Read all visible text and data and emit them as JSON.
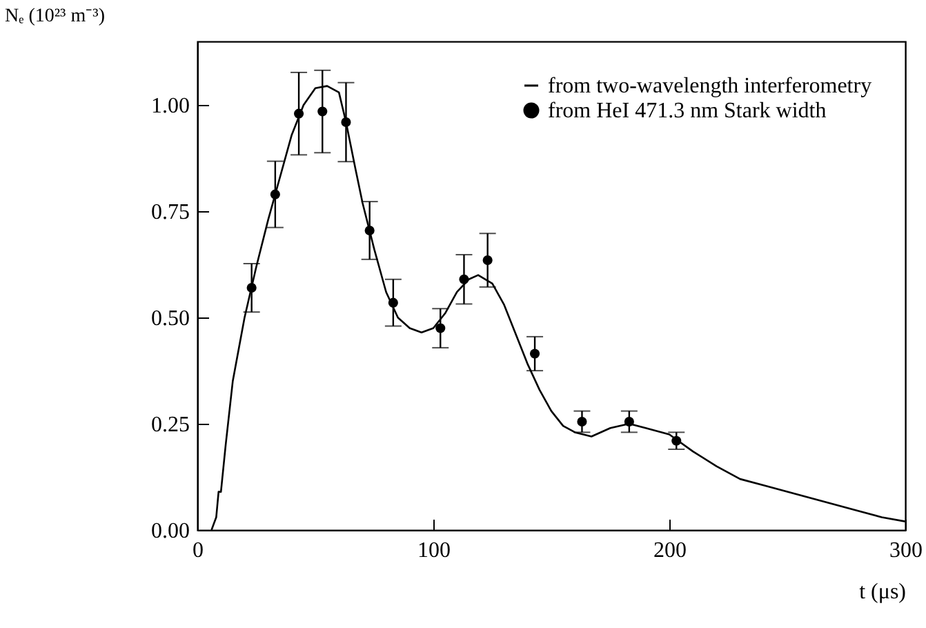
{
  "chart_data": {
    "type": "line",
    "xlabel": "t (μs)",
    "ylabel": "Nₑ (10²³ m⁻³)",
    "xlim": [
      0,
      300
    ],
    "ylim": [
      0,
      1.15
    ],
    "xticks": [
      0,
      100,
      200,
      300
    ],
    "yticks": [
      {
        "value": 0,
        "label": "0.00"
      },
      {
        "value": 0.25,
        "label": "0.25"
      },
      {
        "value": 0.5,
        "label": "0.50"
      },
      {
        "value": 0.75,
        "label": "0.75"
      },
      {
        "value": 1,
        "label": "1.00"
      }
    ],
    "legend": "top right",
    "series": [
      {
        "name": "from two-wavelength interferometry",
        "type": "line",
        "color": "#000000",
        "line_style": "solid",
        "x": [
          6,
          8,
          9,
          10,
          12,
          15,
          17,
          20,
          25,
          30,
          35,
          40,
          45,
          50,
          55,
          60,
          63,
          67,
          70,
          75,
          80,
          85,
          90,
          95,
          100,
          105,
          110,
          115,
          119,
          125,
          130,
          135,
          140,
          145,
          150,
          155,
          160,
          167,
          175,
          183,
          190,
          200,
          210,
          220,
          230,
          240,
          250,
          260,
          270,
          280,
          290,
          300
        ],
        "values": [
          0,
          0.03,
          0.09,
          0.09,
          0.2,
          0.35,
          0.41,
          0.5,
          0.62,
          0.73,
          0.83,
          0.93,
          1.0,
          1.04,
          1.045,
          1.03,
          0.96,
          0.85,
          0.77,
          0.66,
          0.56,
          0.5,
          0.475,
          0.465,
          0.475,
          0.51,
          0.56,
          0.59,
          0.6,
          0.58,
          0.53,
          0.46,
          0.39,
          0.33,
          0.28,
          0.245,
          0.23,
          0.22,
          0.24,
          0.25,
          0.24,
          0.225,
          0.185,
          0.15,
          0.12,
          0.105,
          0.09,
          0.075,
          0.06,
          0.045,
          0.03,
          0.02
        ]
      },
      {
        "name": "from HeI 471.3 nm Stark width",
        "type": "scatter",
        "color": "#000000",
        "marker": "circle",
        "x": [
          23,
          33,
          43,
          53,
          63,
          73,
          83,
          103,
          113,
          123,
          143,
          163,
          183,
          203
        ],
        "values": [
          0.57,
          0.79,
          0.98,
          0.985,
          0.96,
          0.705,
          0.535,
          0.475,
          0.59,
          0.635,
          0.415,
          0.255,
          0.255,
          0.21
        ],
        "errors": [
          0.057,
          0.078,
          0.097,
          0.097,
          0.093,
          0.068,
          0.055,
          0.046,
          0.058,
          0.063,
          0.04,
          0.025,
          0.025,
          0.02
        ]
      }
    ]
  }
}
